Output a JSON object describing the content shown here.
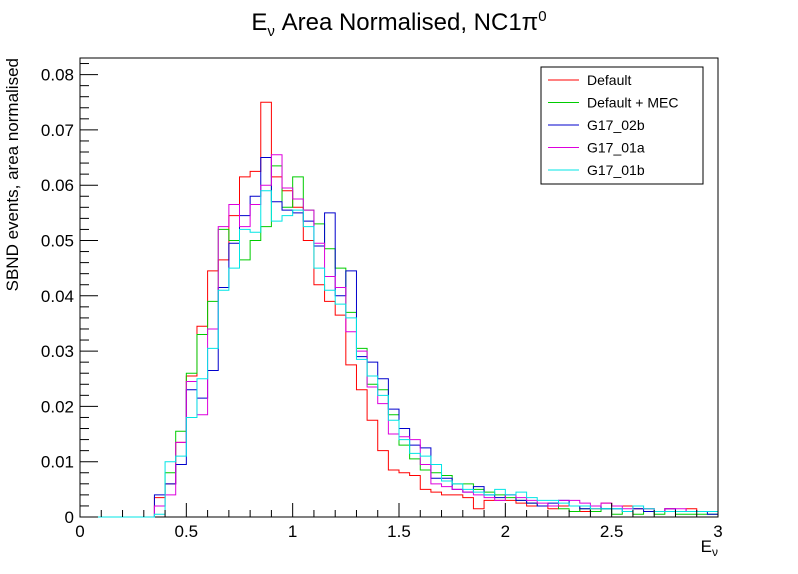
{
  "chart_data": {
    "type": "line",
    "style": "step-histogram",
    "title": "Eν Area Normalised, NC1π⁰",
    "title_parts": {
      "main": "E",
      "sub": "ν",
      "rest": " Area Normalised, NC1π",
      "sup": "0"
    },
    "xlabel": "Eν",
    "xlabel_parts": {
      "main": "E",
      "sub": "ν"
    },
    "ylabel": "SBND events, area normalised",
    "xlim": [
      0,
      3
    ],
    "ylim": [
      0,
      0.083
    ],
    "x_ticks": [
      0,
      0.5,
      1,
      1.5,
      2,
      2.5,
      3
    ],
    "x_tick_labels": [
      "0",
      "0.5",
      "1",
      "1.5",
      "2",
      "2.5",
      "3"
    ],
    "y_ticks": [
      0,
      0.01,
      0.02,
      0.03,
      0.04,
      0.05,
      0.06,
      0.07,
      0.08
    ],
    "y_tick_labels": [
      "0",
      "0.01",
      "0.02",
      "0.03",
      "0.04",
      "0.05",
      "0.06",
      "0.07",
      "0.08"
    ],
    "bin_width": 0.05,
    "bin_edges_start": 0,
    "grid": false,
    "legend_position": "top-right",
    "series": [
      {
        "name": "Default",
        "color": "#ff0000",
        "values": [
          0,
          0,
          0,
          0,
          0,
          0,
          0,
          0.0035,
          0.006,
          0.0135,
          0.0255,
          0.0345,
          0.0445,
          0.0465,
          0.0545,
          0.0615,
          0.0625,
          0.075,
          0.0615,
          0.059,
          0.056,
          0.05,
          0.042,
          0.039,
          0.0365,
          0.0275,
          0.023,
          0.0175,
          0.012,
          0.0085,
          0.008,
          0.0075,
          0.005,
          0.0045,
          0.004,
          0.004,
          0.0035,
          0.0015,
          0.003,
          0.003,
          0.003,
          0.0025,
          0.002,
          0.002,
          0.0015,
          0.002,
          0.002,
          0.001,
          0.0015,
          0.0025,
          0.002,
          0.002,
          0.0015,
          0.0015,
          0.001,
          0.0015,
          0.001,
          0.0015,
          0.001,
          0.001
        ]
      },
      {
        "name": "Default + MEC",
        "color": "#00cc00",
        "values": [
          0,
          0,
          0,
          0,
          0,
          0,
          0,
          0.002,
          0.008,
          0.0155,
          0.026,
          0.033,
          0.039,
          0.052,
          0.05,
          0.0465,
          0.05,
          0.0525,
          0.0635,
          0.056,
          0.0615,
          0.0555,
          0.053,
          0.0485,
          0.045,
          0.037,
          0.0305,
          0.024,
          0.023,
          0.0185,
          0.013,
          0.0105,
          0.0085,
          0.008,
          0.0075,
          0.006,
          0.006,
          0.005,
          0.0045,
          0.004,
          0.0035,
          0.003,
          0.0025,
          0.002,
          0.002,
          0.0015,
          0.001,
          0.0015,
          0.001,
          0.0015,
          0.0005,
          0.001,
          0.0005,
          0.001,
          0.0005,
          0.001,
          0.0005,
          0.0005,
          0.0005,
          0.0005
        ]
      },
      {
        "name": "G17_02b",
        "color": "#0000cc",
        "values": [
          0,
          0,
          0,
          0,
          0,
          0,
          0,
          0.004,
          0.006,
          0.0095,
          0.023,
          0.0215,
          0.0265,
          0.0415,
          0.0495,
          0.0545,
          0.058,
          0.065,
          0.057,
          0.0555,
          0.055,
          0.0535,
          0.049,
          0.055,
          0.04,
          0.0445,
          0.029,
          0.028,
          0.025,
          0.0195,
          0.016,
          0.013,
          0.0125,
          0.007,
          0.007,
          0.005,
          0.0045,
          0.0055,
          0.004,
          0.0035,
          0.004,
          0.003,
          0.0025,
          0.002,
          0.0025,
          0.003,
          0.002,
          0.0015,
          0.002,
          0.0015,
          0.0015,
          0.001,
          0.0015,
          0.001,
          0.001,
          0.0015,
          0.001,
          0.001,
          0.001,
          0.0005
        ]
      },
      {
        "name": "G17_01a",
        "color": "#dd00dd",
        "values": [
          0,
          0,
          0,
          0,
          0,
          0,
          0,
          0.002,
          0.004,
          0.0135,
          0.0245,
          0.0185,
          0.034,
          0.0525,
          0.0565,
          0.0525,
          0.0565,
          0.06,
          0.0655,
          0.0595,
          0.0575,
          0.0555,
          0.0495,
          0.0435,
          0.0415,
          0.0335,
          0.03,
          0.0235,
          0.0205,
          0.015,
          0.0145,
          0.014,
          0.0095,
          0.006,
          0.0055,
          0.005,
          0.0045,
          0.004,
          0.0035,
          0.003,
          0.004,
          0.0035,
          0.003,
          0.0025,
          0.002,
          0.003,
          0.003,
          0.0025,
          0.002,
          0.0025,
          0.002,
          0.0015,
          0.002,
          0.0015,
          0.001,
          0.0015,
          0.0015,
          0.001,
          0.001,
          0.001
        ]
      },
      {
        "name": "G17_01b",
        "color": "#00e5e5",
        "values": [
          0,
          0,
          0,
          0,
          0,
          0,
          0,
          0.0005,
          0.01,
          0.011,
          0.018,
          0.025,
          0.0305,
          0.041,
          0.045,
          0.052,
          0.0515,
          0.059,
          0.0535,
          0.0545,
          0.0555,
          0.0525,
          0.045,
          0.041,
          0.0385,
          0.036,
          0.0285,
          0.0255,
          0.022,
          0.0175,
          0.014,
          0.0115,
          0.011,
          0.0095,
          0.0065,
          0.006,
          0.005,
          0.0045,
          0.004,
          0.005,
          0.004,
          0.0045,
          0.0035,
          0.003,
          0.003,
          0.0025,
          0.002,
          0.002,
          0.0015,
          0.0015,
          0.0015,
          0.001,
          0.002,
          0.0015,
          0.001,
          0.001,
          0.001,
          0.001,
          0.001,
          0.001
        ]
      }
    ]
  }
}
